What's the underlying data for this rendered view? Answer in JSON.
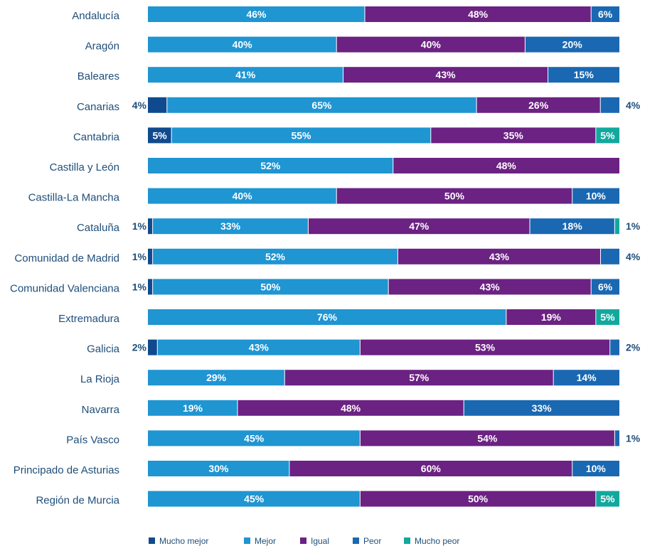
{
  "chart_data": {
    "type": "bar",
    "orientation": "horizontal",
    "stacked": true,
    "xlim": [
      0,
      100
    ],
    "grid": false,
    "legend_position": "bottom-left",
    "categories": [
      "Andalucía",
      "Aragón",
      "Baleares",
      "Canarias",
      "Cantabria",
      "Castilla y León",
      "Castilla-La Mancha",
      "Cataluña",
      "Comunidad de Madrid",
      "Comunidad Valenciana",
      "Extremadura",
      "Galicia",
      "La Rioja",
      "Navarra",
      "País Vasco",
      "Principado de Asturias",
      "Región de Murcia"
    ],
    "series": [
      {
        "name": "Mucho mejor",
        "color": "#104a8e",
        "values": [
          0,
          0,
          0,
          4,
          5,
          0,
          0,
          1,
          1,
          1,
          0,
          2,
          0,
          0,
          0,
          0,
          0
        ]
      },
      {
        "name": "Mejor",
        "color": "#1f95d2",
        "values": [
          46,
          40,
          41,
          65,
          55,
          52,
          40,
          33,
          52,
          50,
          76,
          43,
          29,
          19,
          45,
          30,
          45
        ]
      },
      {
        "name": "Igual",
        "color": "#6b2282",
        "values": [
          48,
          40,
          43,
          26,
          35,
          48,
          50,
          47,
          43,
          43,
          19,
          53,
          57,
          48,
          54,
          60,
          50
        ]
      },
      {
        "name": "Peor",
        "color": "#1a68b2",
        "values": [
          6,
          20,
          15,
          4,
          0,
          0,
          10,
          18,
          4,
          6,
          0,
          2,
          14,
          33,
          1,
          10,
          0
        ]
      },
      {
        "name": "Mucho peor",
        "color": "#13a89e",
        "values": [
          0,
          0,
          0,
          0,
          5,
          0,
          0,
          1,
          0,
          0,
          5,
          0,
          0,
          0,
          0,
          0,
          5
        ]
      }
    ]
  }
}
